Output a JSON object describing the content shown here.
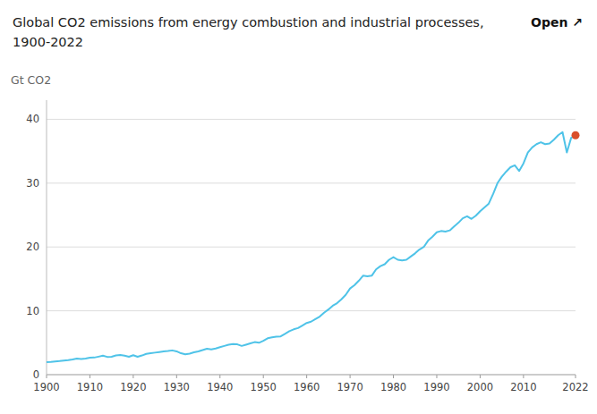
{
  "chart_data": {
    "type": "line",
    "title": "Global CO2 emissions from energy combustion and industrial processes,",
    "subtitle": "1900-2022",
    "annotations": [
      {
        "text": "Open ↗"
      }
    ],
    "ylabel": "Gt CO2",
    "xlim": [
      1900,
      2022
    ],
    "ylim": [
      0,
      43
    ],
    "xticks": [
      1900,
      1910,
      1920,
      1930,
      1940,
      1950,
      1960,
      1970,
      1980,
      1990,
      2000,
      2010,
      2022
    ],
    "yticks": [
      0,
      10,
      20,
      30,
      40
    ],
    "grid": "y",
    "x": [
      1900,
      1901,
      1902,
      1903,
      1904,
      1905,
      1906,
      1907,
      1908,
      1909,
      1910,
      1911,
      1912,
      1913,
      1914,
      1915,
      1916,
      1917,
      1918,
      1919,
      1920,
      1921,
      1922,
      1923,
      1924,
      1925,
      1926,
      1927,
      1928,
      1929,
      1930,
      1931,
      1932,
      1933,
      1934,
      1935,
      1936,
      1937,
      1938,
      1939,
      1940,
      1941,
      1942,
      1943,
      1944,
      1945,
      1946,
      1947,
      1948,
      1949,
      1950,
      1951,
      1952,
      1953,
      1954,
      1955,
      1956,
      1957,
      1958,
      1959,
      1960,
      1961,
      1962,
      1963,
      1964,
      1965,
      1966,
      1967,
      1968,
      1969,
      1970,
      1971,
      1972,
      1973,
      1974,
      1975,
      1976,
      1977,
      1978,
      1979,
      1980,
      1981,
      1982,
      1983,
      1984,
      1985,
      1986,
      1987,
      1988,
      1989,
      1990,
      1991,
      1992,
      1993,
      1994,
      1995,
      1996,
      1997,
      1998,
      1999,
      2000,
      2001,
      2002,
      2003,
      2004,
      2005,
      2006,
      2007,
      2008,
      2009,
      2010,
      2011,
      2012,
      2013,
      2014,
      2015,
      2016,
      2017,
      2018,
      2019,
      2020,
      2021,
      2022
    ],
    "series": [
      {
        "type": "line",
        "color": "#4FC3E8",
        "values": [
          1.96,
          2.0,
          2.07,
          2.12,
          2.2,
          2.27,
          2.37,
          2.51,
          2.45,
          2.53,
          2.65,
          2.68,
          2.82,
          2.97,
          2.78,
          2.8,
          3.0,
          3.08,
          2.98,
          2.8,
          3.05,
          2.8,
          3.0,
          3.25,
          3.35,
          3.45,
          3.55,
          3.65,
          3.7,
          3.8,
          3.65,
          3.35,
          3.2,
          3.3,
          3.5,
          3.65,
          3.85,
          4.05,
          3.95,
          4.1,
          4.3,
          4.5,
          4.7,
          4.8,
          4.75,
          4.5,
          4.7,
          4.9,
          5.1,
          5.0,
          5.3,
          5.7,
          5.85,
          5.95,
          6.0,
          6.4,
          6.8,
          7.1,
          7.3,
          7.7,
          8.1,
          8.3,
          8.7,
          9.1,
          9.7,
          10.2,
          10.8,
          11.2,
          11.8,
          12.5,
          13.5,
          14.0,
          14.7,
          15.5,
          15.4,
          15.5,
          16.5,
          17.0,
          17.3,
          18.0,
          18.4,
          18.0,
          17.9,
          18.0,
          18.5,
          19.0,
          19.6,
          20.0,
          21.0,
          21.6,
          22.3,
          22.5,
          22.4,
          22.6,
          23.2,
          23.8,
          24.5,
          24.8,
          24.4,
          24.9,
          25.6,
          26.2,
          26.8,
          28.3,
          30.0,
          31.0,
          31.8,
          32.5,
          32.8,
          31.9,
          33.1,
          34.8,
          35.6,
          36.1,
          36.4,
          36.1,
          36.2,
          36.8,
          37.5,
          38.0,
          34.8,
          37.1,
          37.5
        ]
      },
      {
        "type": "scatter",
        "marker": "circle",
        "color": "#D94F2B",
        "values": [
          null,
          null,
          null,
          null,
          null,
          null,
          null,
          null,
          null,
          null,
          null,
          null,
          null,
          null,
          null,
          null,
          null,
          null,
          null,
          null,
          null,
          null,
          null,
          null,
          null,
          null,
          null,
          null,
          null,
          null,
          null,
          null,
          null,
          null,
          null,
          null,
          null,
          null,
          null,
          null,
          null,
          null,
          null,
          null,
          null,
          null,
          null,
          null,
          null,
          null,
          null,
          null,
          null,
          null,
          null,
          null,
          null,
          null,
          null,
          null,
          null,
          null,
          null,
          null,
          null,
          null,
          null,
          null,
          null,
          null,
          null,
          null,
          null,
          null,
          null,
          null,
          null,
          null,
          null,
          null,
          null,
          null,
          null,
          null,
          null,
          null,
          null,
          null,
          null,
          null,
          null,
          null,
          null,
          null,
          null,
          null,
          null,
          null,
          null,
          null,
          null,
          null,
          null,
          null,
          null,
          null,
          null,
          null,
          null,
          null,
          null,
          null,
          null,
          null,
          null,
          null,
          null,
          null,
          null,
          null,
          null,
          null,
          37.5
        ]
      }
    ]
  }
}
